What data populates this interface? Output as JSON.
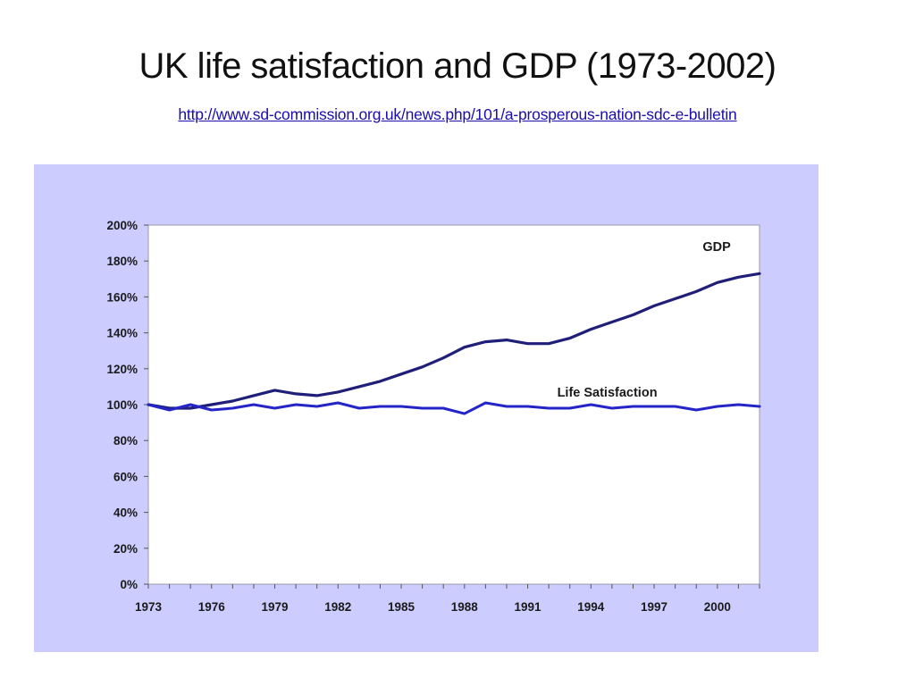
{
  "slide": {
    "title": "UK life satisfaction and GDP (1973-2002)",
    "link": "http://www.sd-commission.org.uk/news.php/101/a-prosperous-nation-sdc-e-bulletin"
  },
  "colors": {
    "frame_background": "#ccccff",
    "plot_background": "#ffffff",
    "gdp_line": "#1f1f7a",
    "life_satisfaction_line": "#2424c8",
    "link": "#1a0dab"
  },
  "chart_data": {
    "type": "line",
    "title": "",
    "xlabel": "",
    "ylabel": "",
    "ylim": [
      0,
      200
    ],
    "xlim": [
      1973,
      2002
    ],
    "grid": false,
    "y_ticks": [
      "0%",
      "20%",
      "40%",
      "60%",
      "80%",
      "100%",
      "120%",
      "140%",
      "160%",
      "180%",
      "200%"
    ],
    "x_ticks": [
      "1973",
      "1976",
      "1979",
      "1982",
      "1985",
      "1988",
      "1991",
      "1994",
      "1997",
      "2000"
    ],
    "x": [
      1973,
      1974,
      1975,
      1976,
      1977,
      1978,
      1979,
      1980,
      1981,
      1982,
      1983,
      1984,
      1985,
      1986,
      1987,
      1988,
      1989,
      1990,
      1991,
      1992,
      1993,
      1994,
      1995,
      1996,
      1997,
      1998,
      1999,
      2000,
      2001,
      2002
    ],
    "series": [
      {
        "name": "GDP",
        "values": [
          100,
          98,
          98,
          100,
          102,
          105,
          108,
          106,
          105,
          107,
          110,
          113,
          117,
          121,
          126,
          132,
          135,
          136,
          134,
          134,
          137,
          142,
          146,
          150,
          155,
          159,
          163,
          168,
          171,
          173
        ]
      },
      {
        "name": "Life Satisfaction",
        "values": [
          100,
          97,
          100,
          97,
          98,
          100,
          98,
          100,
          99,
          101,
          98,
          99,
          99,
          98,
          98,
          95,
          101,
          99,
          99,
          98,
          98,
          100,
          98,
          99,
          99,
          99,
          97,
          99,
          100,
          99
        ]
      }
    ]
  }
}
